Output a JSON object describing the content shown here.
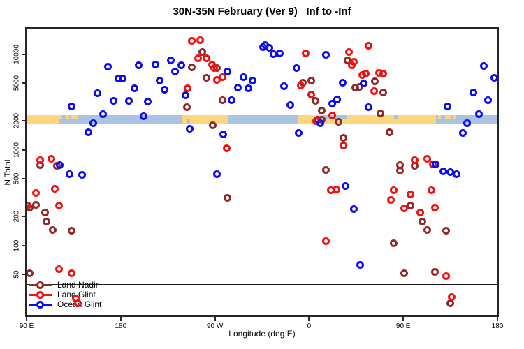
{
  "title": "30N-35N February (Ver 9)   Inf to -Inf",
  "x_axis": {
    "label": "Longitude (deg E)",
    "ticks": [
      {
        "deg": 90,
        "label": "90 E"
      },
      {
        "deg": 180,
        "label": "180"
      },
      {
        "deg": 270,
        "label": "90 W"
      },
      {
        "deg": 360,
        "label": "0"
      },
      {
        "deg": 450,
        "label": "90 E"
      },
      {
        "deg": 540,
        "label": "180"
      }
    ]
  },
  "y_axis": {
    "label": "N Total",
    "ticks": [
      50,
      100,
      200,
      500,
      1000,
      2000,
      5000,
      10000
    ]
  },
  "legend": {
    "items": [
      {
        "label": "Land Nadir",
        "color": "#8f2a2a"
      },
      {
        "label": "Land Glint",
        "color": "#f50f0f"
      },
      {
        "label": "Ocean Glint",
        "color": "#0b0bf5"
      }
    ]
  },
  "chart_data": {
    "type": "scatter",
    "title": "30N-35N February (Ver 9)   Inf to -Inf",
    "xlabel": "Longitude (deg E)",
    "ylabel": "N Total",
    "x_note": "longitude unwrapped eastward from 90E (90..540 deg)",
    "xlim": [
      90,
      540
    ],
    "ylim": [
      18.5,
      18500
    ],
    "y_scale": "log10",
    "grid": false,
    "legend_position": "bottom-left",
    "threshold_line_n": 39,
    "marker_style": "open-circle",
    "map_band": {
      "n_range": [
        1880,
        2320
      ],
      "ocean_color": "#a9c4e3",
      "land_color": "#fcd77d",
      "land_segments_deg": [
        [
          90,
          121.5
        ],
        [
          238.5,
          282
        ],
        [
          350,
          481
        ]
      ],
      "top_ocean_notches_deg": [
        [
          371.5,
          395.5
        ],
        [
          441,
          445
        ]
      ],
      "bottom_ocean_notches_deg": [
        [
          243,
          246
        ]
      ],
      "top_land_specks_deg": [
        [
          121.5,
          124
        ],
        [
          128,
          131
        ],
        [
          133,
          139
        ],
        [
          483,
          486
        ],
        [
          490,
          495
        ],
        [
          497,
          500
        ]
      ]
    },
    "series": [
      {
        "name": "Land Nadir",
        "color": "#8f2a2a",
        "points": [
          [
            103,
            690
          ],
          [
            119,
            675
          ],
          [
            93,
            247
          ],
          [
            99,
            264
          ],
          [
            108,
            222
          ],
          [
            109,
            177
          ],
          [
            115,
            145
          ],
          [
            133,
            143
          ],
          [
            93,
            51
          ],
          [
            258,
            10500
          ],
          [
            248,
            7300
          ],
          [
            272,
            7150
          ],
          [
            262,
            5660
          ],
          [
            277,
            3280
          ],
          [
            243,
            2780
          ],
          [
            268,
            1800
          ],
          [
            282,
            315
          ],
          [
            397,
            8550
          ],
          [
            362,
            5330
          ],
          [
            423,
            5240
          ],
          [
            354,
            5050
          ],
          [
            404,
            4500
          ],
          [
            408,
            4560
          ],
          [
            366,
            3230
          ],
          [
            372,
            2570
          ],
          [
            428,
            2400
          ],
          [
            368,
            2080
          ],
          [
            372,
            2050
          ],
          [
            388,
            1950
          ],
          [
            393,
            1340
          ],
          [
            376,
            620
          ],
          [
            431,
            3960
          ],
          [
            437,
            1530
          ],
          [
            447,
            690
          ],
          [
            447,
            600
          ],
          [
            461,
            680
          ],
          [
            457,
            260
          ],
          [
            468,
            177
          ],
          [
            473,
            145
          ],
          [
            491,
            143
          ],
          [
            441,
            106
          ],
          [
            451,
            51
          ],
          [
            480,
            53
          ],
          [
            495,
            25
          ]
        ]
      },
      {
        "name": "Land Glint",
        "color": "#f50f0f",
        "points": [
          [
            103,
            775
          ],
          [
            114,
            810
          ],
          [
            99,
            355
          ],
          [
            117,
            390
          ],
          [
            121,
            260
          ],
          [
            91,
            262
          ],
          [
            121,
            57
          ],
          [
            133,
            51
          ],
          [
            137,
            28
          ],
          [
            139,
            25
          ],
          [
            248,
            13800
          ],
          [
            256,
            14000
          ],
          [
            254,
            9050
          ],
          [
            262,
            9050
          ],
          [
            267,
            7800
          ],
          [
            269,
            7150
          ],
          [
            272,
            5380
          ],
          [
            277,
            5750
          ],
          [
            244,
            4400
          ],
          [
            281,
            1030
          ],
          [
            357,
            10200
          ],
          [
            398,
            10500
          ],
          [
            417,
            12200
          ],
          [
            403,
            8300
          ],
          [
            401,
            7650
          ],
          [
            411,
            6050
          ],
          [
            414,
            6250
          ],
          [
            427,
            6350
          ],
          [
            352,
            4700
          ],
          [
            422,
            4100
          ],
          [
            362,
            3800
          ],
          [
            382,
            2290
          ],
          [
            367,
            2000
          ],
          [
            393,
            1110
          ],
          [
            381,
            380
          ],
          [
            386,
            385
          ],
          [
            376,
            110
          ],
          [
            431,
            6250
          ],
          [
            441,
            375
          ],
          [
            477,
            375
          ],
          [
            457,
            340
          ],
          [
            438,
            300
          ],
          [
            451,
            245
          ],
          [
            480,
            247
          ],
          [
            466,
            220
          ],
          [
            491,
            48
          ],
          [
            496,
            29
          ],
          [
            473,
            810
          ],
          [
            461,
            775
          ],
          [
            478,
            700
          ]
        ]
      },
      {
        "name": "Ocean Glint",
        "color": "#0b0bf5",
        "points": [
          [
            168,
            7400
          ],
          [
            197,
            7600
          ],
          [
            178,
            5560
          ],
          [
            182,
            5560
          ],
          [
            193,
            4400
          ],
          [
            158,
            3900
          ],
          [
            173,
            3260
          ],
          [
            188,
            3230
          ],
          [
            133,
            2850
          ],
          [
            163,
            2370
          ],
          [
            202,
            2230
          ],
          [
            154,
            1900
          ],
          [
            149,
            1530
          ],
          [
            122,
            690
          ],
          [
            131,
            560
          ],
          [
            143,
            550
          ],
          [
            228,
            8600
          ],
          [
            213,
            7800
          ],
          [
            238,
            7700
          ],
          [
            232,
            6600
          ],
          [
            282,
            6600
          ],
          [
            217,
            5300
          ],
          [
            297,
            5770
          ],
          [
            306,
            5330
          ],
          [
            222,
            4270
          ],
          [
            292,
            4450
          ],
          [
            302,
            4400
          ],
          [
            242,
            3720
          ],
          [
            286,
            3280
          ],
          [
            206,
            3180
          ],
          [
            246,
            1670
          ],
          [
            278,
            1460
          ],
          [
            272,
            560
          ],
          [
            316,
            11800
          ],
          [
            318,
            12500
          ],
          [
            322,
            11700
          ],
          [
            326,
            10000
          ],
          [
            332,
            10200
          ],
          [
            376,
            9800
          ],
          [
            348,
            7200
          ],
          [
            392,
            5000
          ],
          [
            412,
            4950
          ],
          [
            336,
            4600
          ],
          [
            387,
            3360
          ],
          [
            382,
            3050
          ],
          [
            342,
            2960
          ],
          [
            417,
            2810
          ],
          [
            371,
            1890
          ],
          [
            350,
            1510
          ],
          [
            395,
            420
          ],
          [
            403,
            240
          ],
          [
            409,
            63
          ],
          [
            527,
            7550
          ],
          [
            537,
            5650
          ],
          [
            517,
            3960
          ],
          [
            531,
            3280
          ],
          [
            492,
            2860
          ],
          [
            522,
            2370
          ],
          [
            511,
            1890
          ],
          [
            507,
            1510
          ],
          [
            481,
            700
          ],
          [
            488,
            590
          ],
          [
            495,
            585
          ],
          [
            501,
            560
          ]
        ]
      }
    ]
  }
}
